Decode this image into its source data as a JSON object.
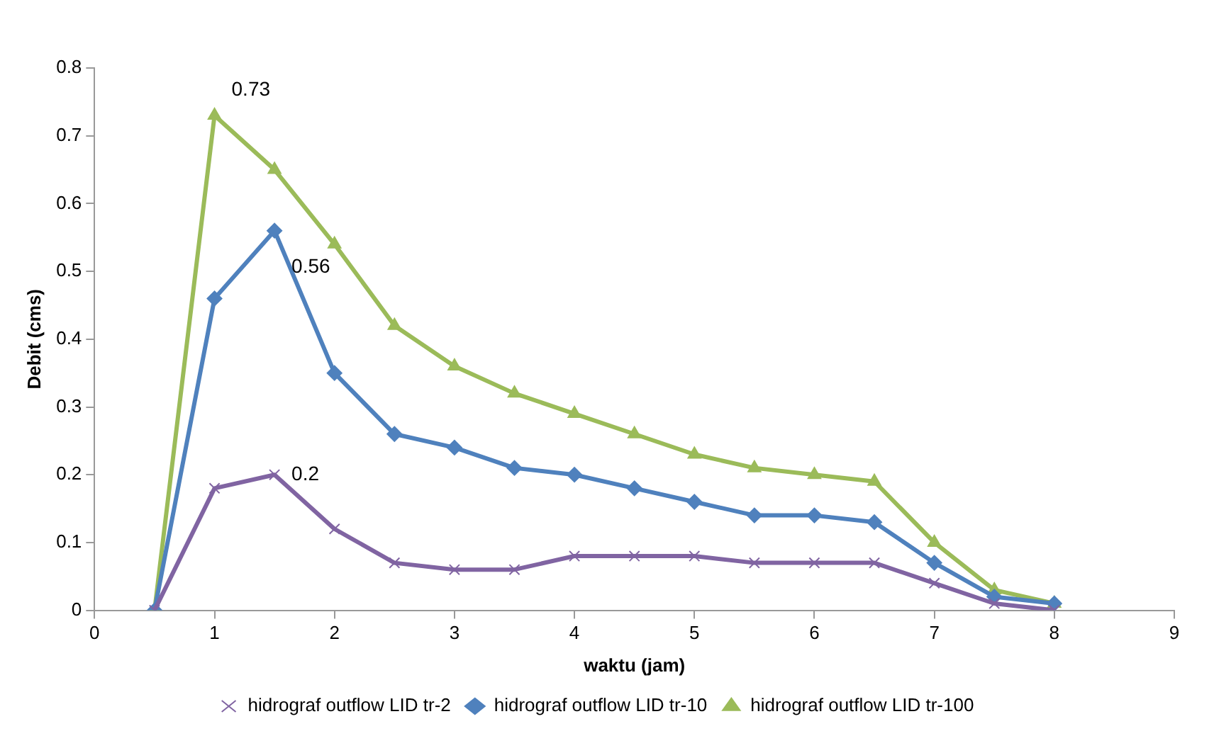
{
  "chart_data": {
    "type": "line",
    "xlabel": "waktu (jam)",
    "ylabel": "Debit (cms)",
    "x": [
      0.5,
      1,
      1.5,
      2,
      2.5,
      3,
      3.5,
      4,
      4.5,
      5,
      5.5,
      6,
      6.5,
      7,
      7.5,
      8
    ],
    "series": [
      {
        "name": "hidrograf outflow LID tr-2",
        "color": "#8064a2",
        "marker": "cross",
        "values": [
          0,
          0.18,
          0.2,
          0.12,
          0.07,
          0.06,
          0.06,
          0.08,
          0.08,
          0.08,
          0.07,
          0.07,
          0.07,
          0.04,
          0.01,
          0
        ],
        "value_labels": [
          null,
          null,
          "0.2",
          null,
          null,
          null,
          null,
          null,
          null,
          null,
          null,
          null,
          null,
          null,
          null,
          null
        ]
      },
      {
        "name": "hidrograf outflow LID tr-10",
        "color": "#4f81bd",
        "marker": "diamond",
        "values": [
          0,
          0.46,
          0.56,
          0.35,
          0.26,
          0.24,
          0.21,
          0.2,
          0.18,
          0.16,
          0.14,
          0.14,
          0.13,
          0.07,
          0.02,
          0.01
        ],
        "value_labels": [
          null,
          null,
          "0.56",
          null,
          null,
          null,
          null,
          null,
          null,
          null,
          null,
          null,
          null,
          null,
          null,
          null
        ]
      },
      {
        "name": "hidrograf outflow LID tr-100",
        "color": "#9bbb59",
        "marker": "triangle",
        "values": [
          0,
          0.73,
          0.65,
          0.54,
          0.42,
          0.36,
          0.32,
          0.29,
          0.26,
          0.23,
          0.21,
          0.2,
          0.19,
          0.1,
          0.03,
          0.01
        ],
        "value_labels": [
          null,
          "0.73",
          null,
          null,
          null,
          null,
          null,
          null,
          null,
          null,
          null,
          null,
          null,
          null,
          null,
          null
        ]
      }
    ],
    "xlim": [
      0,
      9
    ],
    "xticks": [
      0,
      1,
      2,
      3,
      4,
      5,
      6,
      7,
      8,
      9
    ],
    "ylim": [
      0,
      0.8
    ],
    "yticks": [
      0,
      0.1,
      0.2,
      0.3,
      0.4,
      0.5,
      0.6,
      0.7,
      0.8
    ],
    "grid": false,
    "legend": "bottom",
    "line_style": "solid"
  }
}
